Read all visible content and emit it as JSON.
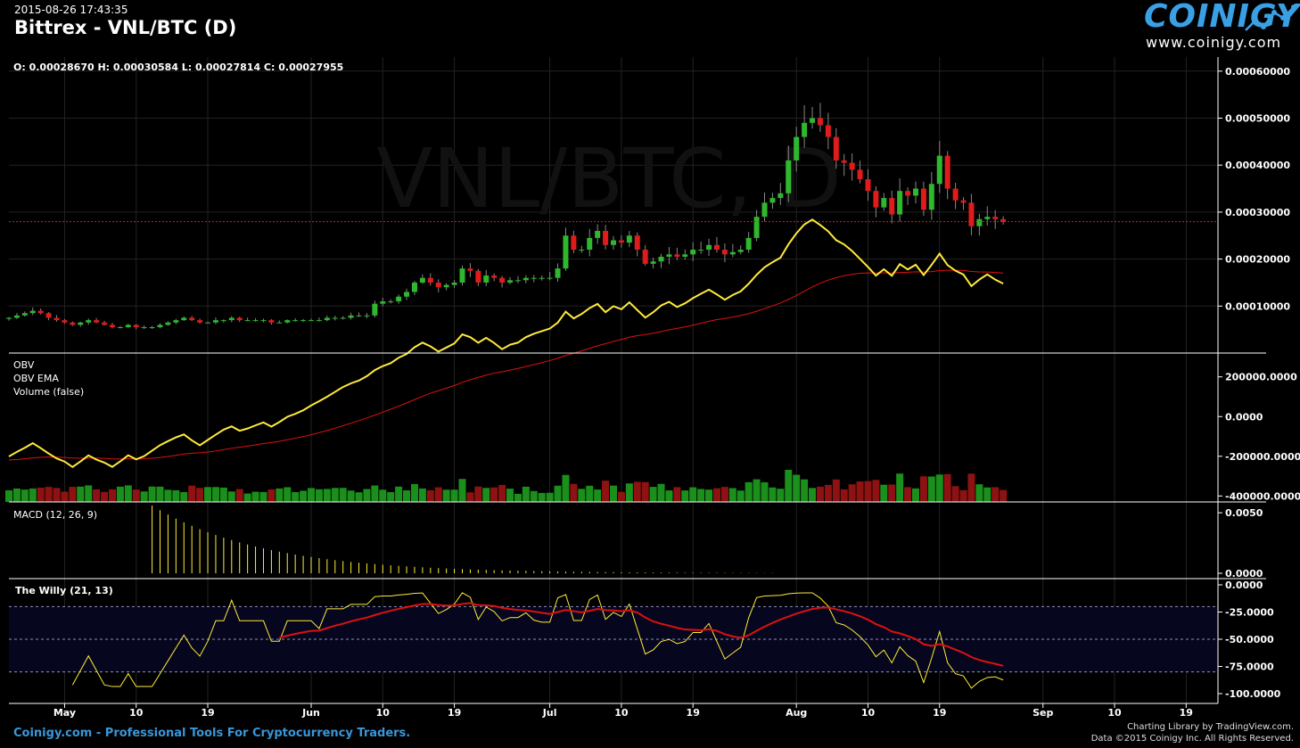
{
  "header": {
    "timestamp": "2015-08-26 17:43:35",
    "title": "Bittrex - VNL/BTC (D)",
    "watermark": "VNL/BTC, D",
    "ohlc": "O: 0.00028670 H: 0.00030584 L: 0.00027814 C: 0.00027955"
  },
  "logo": {
    "name": "COINIGY",
    "url": "www.coinigy.com"
  },
  "footer": {
    "left": "Coinigy.com - Professional Tools For Cryptocurrency Traders.",
    "right1": "Charting Library by TradingView.com.",
    "right2": "Data ©2015 Coinigy Inc. All Rights Reserved."
  },
  "colors": {
    "up": "#2eb82e",
    "down": "#e01b1b",
    "yellow": "#ffeb3b",
    "red": "#dd1111",
    "logo": "#3aa0e6",
    "grid": "#222222"
  },
  "chart_data": [
    {
      "type": "candlestick",
      "name": "price",
      "x_labels": [
        "May",
        "10",
        "19",
        "Jun",
        "10",
        "19",
        "Jul",
        "10",
        "19",
        "Aug",
        "10",
        "19",
        "Sep",
        "10",
        "19"
      ],
      "x_label_dates": [
        "2015-05-01",
        "2015-05-10",
        "2015-05-19",
        "2015-06-01",
        "2015-06-10",
        "2015-06-19",
        "2015-07-01",
        "2015-07-10",
        "2015-07-19",
        "2015-08-01",
        "2015-08-10",
        "2015-08-19",
        "2015-09-01",
        "2015-09-10",
        "2015-09-19"
      ],
      "date_range": [
        "2015-04-24",
        "2015-09-23"
      ],
      "ylim": [
        0.0,
        0.00063
      ],
      "y_ticks": [
        "0.00010000",
        "0.00020000",
        "0.00030000",
        "0.00040000",
        "0.00050000",
        "0.00060000"
      ],
      "last_price": 0.00027955,
      "start_date": "2015-04-24",
      "closes": [
        7.5,
        8,
        8.5,
        9,
        8.5,
        7.5,
        7,
        6.5,
        6,
        6.5,
        7,
        6.5,
        6,
        5.5,
        5.5,
        6,
        5.5,
        5.5,
        5.5,
        6,
        6.5,
        7,
        7.5,
        7,
        6.5,
        6.5,
        7,
        7,
        7.5,
        7,
        7,
        7,
        7,
        6.5,
        6.5,
        7,
        7,
        7,
        7,
        7,
        7.5,
        7.5,
        7.5,
        8,
        8,
        8,
        10.5,
        11,
        11,
        12,
        13,
        15,
        16,
        15,
        14,
        14.5,
        15,
        18,
        17.5,
        15,
        16.5,
        16,
        15,
        15.5,
        15.5,
        16,
        16,
        16,
        16,
        18,
        25,
        22,
        22,
        24.5,
        26,
        23,
        24,
        23.5,
        25,
        22,
        19,
        19.5,
        20.5,
        21,
        20.5,
        21,
        22,
        22,
        23,
        22,
        21,
        21.5,
        22,
        24.5,
        29,
        32,
        33,
        34,
        41,
        46,
        49,
        50,
        48.5,
        46,
        41,
        40.5,
        39,
        37,
        34.5,
        31,
        33,
        29.5,
        34.5,
        33.5,
        35,
        30.5,
        36,
        42,
        35,
        32.5,
        32,
        27,
        28.5,
        29,
        28.5,
        27.955
      ],
      "obv_label": "OBV",
      "obv_ema_label": "OBV EMA",
      "volume_label": "Volume (false)",
      "obv_ticks": [
        "200000.0000",
        "0.0000",
        "-200000.0000",
        "-400000.0000"
      ],
      "macd_label": "MACD (12, 26, 9)",
      "macd_ticks": [
        "0.0050",
        "0.0000"
      ],
      "willy_label": "The Willy (21, 13)",
      "willy_ticks": [
        "0.0000",
        "-25.0000",
        "-50.0000",
        "-75.0000",
        "-100.0000"
      ]
    }
  ]
}
